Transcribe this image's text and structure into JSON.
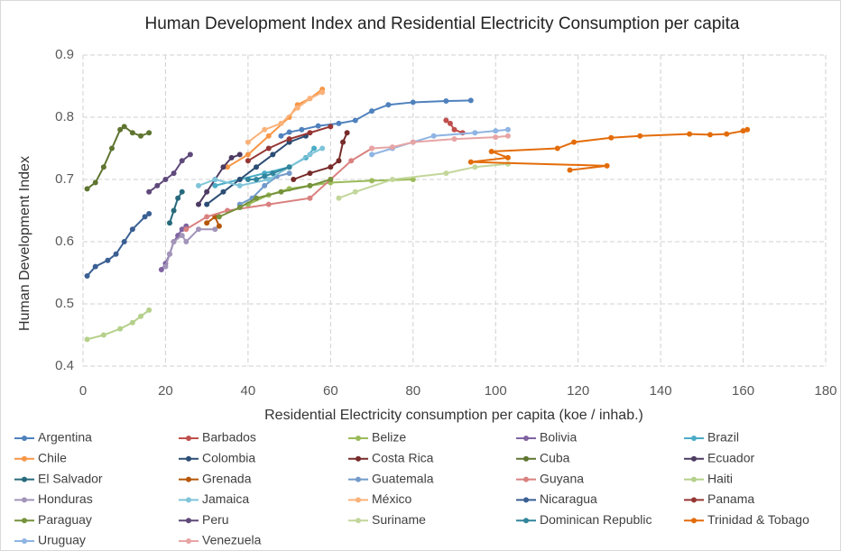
{
  "chart_data": {
    "type": "line",
    "title": "Human Development Index and Residential Electricity Consumption per capita",
    "x_label": "Residential Electricity consumption per capita (koe / inhab.)",
    "y_label": "Human Development Index",
    "xlim": [
      0,
      180
    ],
    "xticks": [
      0,
      20,
      40,
      60,
      80,
      100,
      120,
      140,
      160,
      180
    ],
    "ylim": [
      0.4,
      0.9
    ],
    "yticks": [
      0.4,
      0.5,
      0.6,
      0.7,
      0.8,
      0.9
    ],
    "grid": true,
    "legend": "bottom",
    "series": [
      {
        "name": "Argentina",
        "color": "#4f81bd",
        "x": [
          48,
          50,
          53,
          57,
          62,
          66,
          70,
          74,
          80,
          88,
          94
        ],
        "values": [
          0.77,
          0.776,
          0.78,
          0.786,
          0.79,
          0.795,
          0.81,
          0.82,
          0.824,
          0.826,
          0.827
        ]
      },
      {
        "name": "Barbados",
        "color": "#c0504d",
        "x": [
          88,
          89,
          90,
          92
        ],
        "values": [
          0.795,
          0.79,
          0.78,
          0.775
        ]
      },
      {
        "name": "Belize",
        "color": "#9bbb59",
        "x": [
          40,
          45,
          50,
          55,
          60,
          70,
          80
        ],
        "values": [
          0.66,
          0.675,
          0.685,
          0.69,
          0.695,
          0.698,
          0.7
        ]
      },
      {
        "name": "Bolivia",
        "color": "#8064a2",
        "x": [
          19,
          20,
          21,
          22,
          23,
          24,
          25
        ],
        "values": [
          0.555,
          0.565,
          0.58,
          0.6,
          0.61,
          0.62,
          0.625
        ]
      },
      {
        "name": "Brazil",
        "color": "#4bacc6",
        "x": [
          32,
          38,
          44,
          50,
          54,
          56
        ],
        "values": [
          0.69,
          0.7,
          0.71,
          0.72,
          0.735,
          0.75
        ]
      },
      {
        "name": "Chile",
        "color": "#f79646",
        "x": [
          35,
          40,
          45,
          50,
          52,
          55,
          58
        ],
        "values": [
          0.72,
          0.74,
          0.77,
          0.8,
          0.82,
          0.83,
          0.845
        ]
      },
      {
        "name": "Colombia",
        "color": "#2c4d75",
        "x": [
          30,
          34,
          38,
          42,
          46,
          50,
          54
        ],
        "values": [
          0.66,
          0.68,
          0.7,
          0.72,
          0.74,
          0.76,
          0.77
        ]
      },
      {
        "name": "Costa Rica",
        "color": "#772c2a",
        "x": [
          51,
          55,
          60,
          62,
          63,
          64
        ],
        "values": [
          0.7,
          0.71,
          0.72,
          0.73,
          0.76,
          0.775
        ]
      },
      {
        "name": "Cuba",
        "color": "#5f7530",
        "x": [
          1,
          3,
          5,
          7,
          9,
          10,
          12,
          14,
          16
        ],
        "values": [
          0.685,
          0.695,
          0.72,
          0.75,
          0.78,
          0.785,
          0.775,
          0.77,
          0.775
        ]
      },
      {
        "name": "Ecuador",
        "color": "#4d3b62",
        "x": [
          28,
          30,
          32,
          34,
          36,
          38
        ],
        "values": [
          0.66,
          0.68,
          0.7,
          0.72,
          0.735,
          0.74
        ]
      },
      {
        "name": "El Salvador",
        "color": "#276a7c",
        "x": [
          21,
          22,
          23,
          24
        ],
        "values": [
          0.63,
          0.65,
          0.67,
          0.68
        ]
      },
      {
        "name": "Grenada",
        "color": "#b65708",
        "x": [
          30,
          32,
          33
        ],
        "values": [
          0.63,
          0.64,
          0.625
        ]
      },
      {
        "name": "Guatemala",
        "color": "#729aca",
        "x": [
          38,
          41,
          44,
          47,
          50
        ],
        "values": [
          0.66,
          0.67,
          0.69,
          0.705,
          0.71
        ]
      },
      {
        "name": "Guyana",
        "color": "#d9817f",
        "x": [
          25,
          30,
          35,
          45,
          55,
          60,
          65,
          70
        ],
        "values": [
          0.62,
          0.64,
          0.65,
          0.66,
          0.67,
          0.7,
          0.73,
          0.75
        ]
      },
      {
        "name": "Haiti",
        "color": "#b5d08a",
        "x": [
          1,
          5,
          9,
          12,
          14,
          16
        ],
        "values": [
          0.443,
          0.45,
          0.46,
          0.47,
          0.48,
          0.49
        ]
      },
      {
        "name": "Honduras",
        "color": "#a295b9",
        "x": [
          20,
          21,
          22,
          24,
          25,
          28,
          32
        ],
        "values": [
          0.56,
          0.58,
          0.6,
          0.61,
          0.6,
          0.62,
          0.62
        ]
      },
      {
        "name": "Jamaica",
        "color": "#7fc4d9",
        "x": [
          28,
          32,
          38,
          45,
          55,
          58
        ],
        "values": [
          0.69,
          0.7,
          0.69,
          0.7,
          0.74,
          0.75
        ]
      },
      {
        "name": "México",
        "color": "#fab27a",
        "x": [
          40,
          44,
          48,
          52,
          55,
          58
        ],
        "values": [
          0.76,
          0.78,
          0.79,
          0.815,
          0.83,
          0.84
        ]
      },
      {
        "name": "Nicaragua",
        "color": "#3a5f93",
        "x": [
          1,
          3,
          6,
          8,
          10,
          12,
          15,
          16
        ],
        "values": [
          0.545,
          0.56,
          0.57,
          0.58,
          0.6,
          0.62,
          0.64,
          0.645
        ]
      },
      {
        "name": "Panama",
        "color": "#953734",
        "x": [
          40,
          45,
          50,
          55,
          60
        ],
        "values": [
          0.73,
          0.75,
          0.765,
          0.775,
          0.785
        ]
      },
      {
        "name": "Paraguay",
        "color": "#76923c",
        "x": [
          33,
          38,
          42,
          48,
          55,
          60
        ],
        "values": [
          0.64,
          0.655,
          0.67,
          0.68,
          0.69,
          0.7
        ]
      },
      {
        "name": "Peru",
        "color": "#5f497a",
        "x": [
          16,
          18,
          20,
          22,
          24,
          26
        ],
        "values": [
          0.68,
          0.69,
          0.7,
          0.71,
          0.73,
          0.74
        ]
      },
      {
        "name": "Suriname",
        "color": "#c3d69b",
        "x": [
          62,
          66,
          75,
          88,
          95,
          103
        ],
        "values": [
          0.67,
          0.68,
          0.7,
          0.71,
          0.72,
          0.725
        ]
      },
      {
        "name": "Dominican Republic",
        "color": "#31859c",
        "x": [
          40,
          42,
          44,
          46,
          50
        ],
        "values": [
          0.7,
          0.7,
          0.705,
          0.71,
          0.72
        ]
      },
      {
        "name": "Trinidad & Tobago",
        "color": "#e36c0a",
        "x": [
          118,
          127,
          94,
          103,
          99,
          115,
          119,
          128,
          135,
          147,
          152,
          156,
          160,
          161
        ],
        "values": [
          0.715,
          0.722,
          0.728,
          0.735,
          0.745,
          0.75,
          0.76,
          0.767,
          0.77,
          0.773,
          0.772,
          0.773,
          0.778,
          0.78
        ]
      },
      {
        "name": "Uruguay",
        "color": "#8eb4e3",
        "x": [
          70,
          75,
          80,
          85,
          95,
          100,
          103
        ],
        "values": [
          0.74,
          0.75,
          0.76,
          0.77,
          0.775,
          0.778,
          0.78
        ]
      },
      {
        "name": "Venezuela",
        "color": "#e6a5a4",
        "x": [
          70,
          75,
          80,
          90,
          100,
          103
        ],
        "values": [
          0.75,
          0.752,
          0.76,
          0.765,
          0.768,
          0.77
        ]
      }
    ]
  }
}
